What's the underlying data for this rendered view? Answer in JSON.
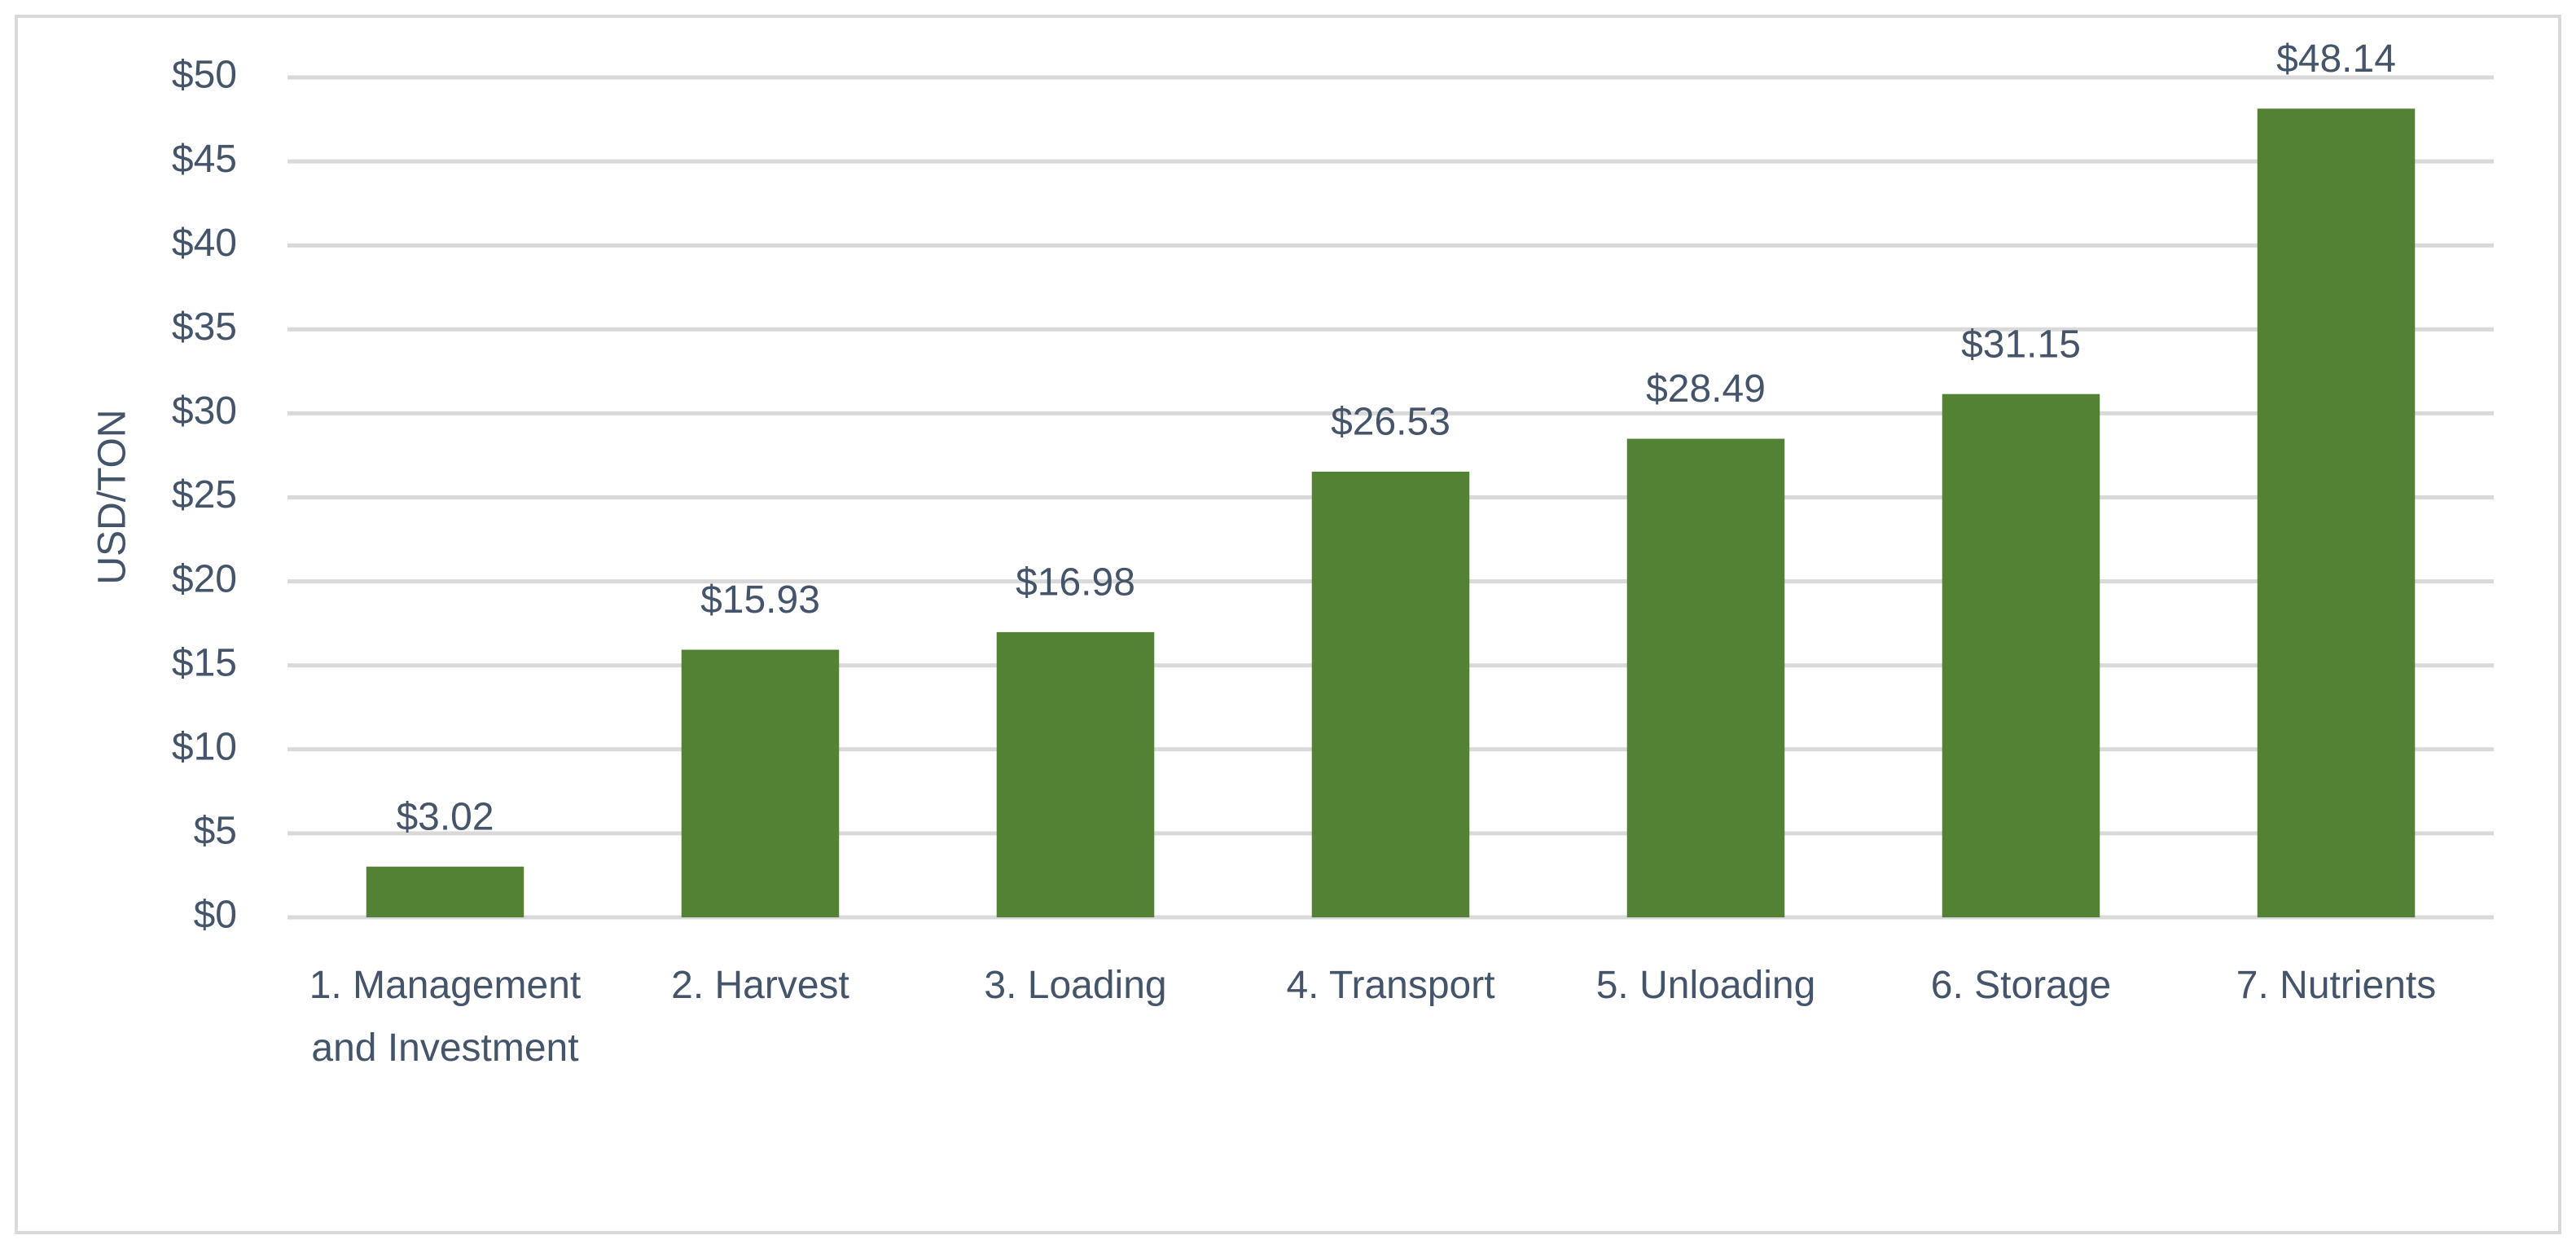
{
  "chart_data": {
    "type": "bar",
    "y_label": "USD/TON",
    "categories": [
      "1. Management and Investment",
      "2. Harvest",
      "3. Loading",
      "4. Transport",
      "5. Unloading",
      "6. Storage",
      "7. Nutrients"
    ],
    "values": [
      3.02,
      15.93,
      16.98,
      26.53,
      28.49,
      31.15,
      48.14
    ],
    "value_labels": [
      "$3.02",
      "$15.93",
      "$16.98",
      "$26.53",
      "$28.49",
      "$31.15",
      "$48.14"
    ],
    "color": "#548235",
    "ylim": [
      0,
      50
    ],
    "yticks": [
      {
        "value": 0,
        "label": "$0"
      },
      {
        "value": 5,
        "label": "$5"
      },
      {
        "value": 10,
        "label": "$10"
      },
      {
        "value": 15,
        "label": "$15"
      },
      {
        "value": 20,
        "label": "$20"
      },
      {
        "value": 25,
        "label": "$25"
      },
      {
        "value": 30,
        "label": "$30"
      },
      {
        "value": 35,
        "label": "$35"
      },
      {
        "value": 40,
        "label": "$40"
      },
      {
        "value": 45,
        "label": "$45"
      },
      {
        "value": 50,
        "label": "$50"
      }
    ],
    "grid": true
  }
}
